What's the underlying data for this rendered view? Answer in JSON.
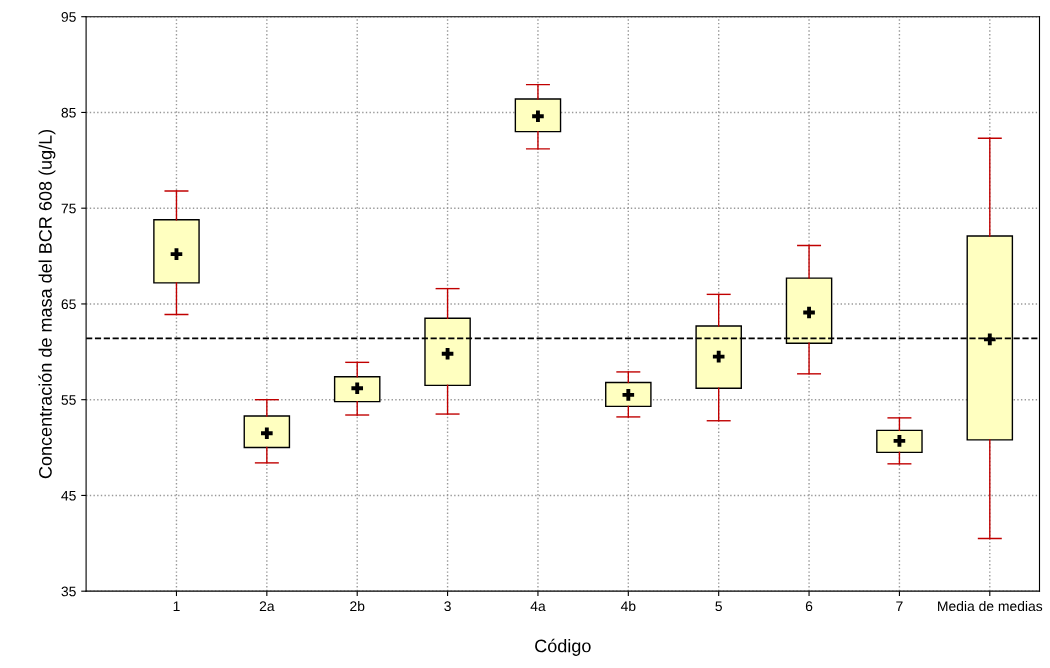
{
  "chart_data": {
    "type": "box",
    "xlabel": "Código",
    "ylabel": "Concentración de masa del BCR 608 (ug/L)",
    "categories": [
      "1",
      "2a",
      "2b",
      "3",
      "4a",
      "4b",
      "5",
      "6",
      "7",
      "Media de medias"
    ],
    "color": "#ffffc0",
    "boxes": [
      {
        "low": 63.9,
        "q1": 67.2,
        "median": 70.2,
        "q3": 73.8,
        "high": 76.8
      },
      {
        "low": 48.4,
        "q1": 50.0,
        "median": 51.5,
        "q3": 53.3,
        "high": 55.0
      },
      {
        "low": 53.4,
        "q1": 54.8,
        "median": 56.2,
        "q3": 57.4,
        "high": 58.9
      },
      {
        "low": 53.5,
        "q1": 56.5,
        "median": 59.8,
        "q3": 63.5,
        "high": 66.6
      },
      {
        "low": 81.2,
        "q1": 83.0,
        "median": 84.6,
        "q3": 86.4,
        "high": 87.9
      },
      {
        "low": 53.2,
        "q1": 54.3,
        "median": 55.5,
        "q3": 56.8,
        "high": 57.9
      },
      {
        "low": 52.8,
        "q1": 56.2,
        "median": 59.5,
        "q3": 62.7,
        "high": 66.0
      },
      {
        "low": 57.7,
        "q1": 60.9,
        "median": 64.1,
        "q3": 67.7,
        "high": 71.1
      },
      {
        "low": 48.3,
        "q1": 49.5,
        "median": 50.7,
        "q3": 51.8,
        "high": 53.1
      },
      {
        "low": 40.5,
        "q1": 50.8,
        "median": 61.3,
        "q3": 72.1,
        "high": 82.3
      }
    ],
    "ylim": [
      35,
      95
    ],
    "yticks": [
      35,
      45,
      55,
      65,
      75,
      85,
      95
    ],
    "ref_lines": [
      {
        "axis": "y",
        "value": 61.4,
        "color": "#000000",
        "line_style": "dashed"
      }
    ],
    "grid": true
  }
}
